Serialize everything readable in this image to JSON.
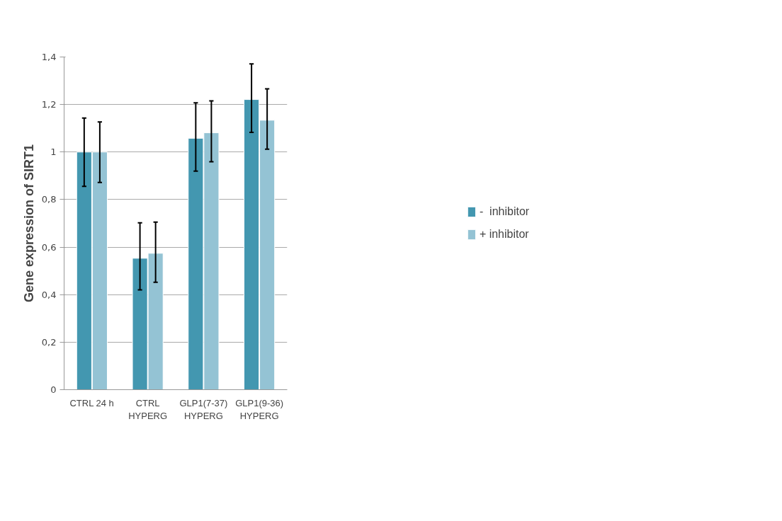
{
  "chart_data": {
    "type": "bar",
    "ylabel": "Gene expression of SIRT1",
    "categories": [
      "CTRL 24 h",
      "CTRL\nHYPERG",
      "GLP1(7-37)\nHYPERG",
      "GLP1(9-36)\nHYPERG"
    ],
    "series": [
      {
        "name": "-  inhibitor",
        "color": "#4397b0",
        "values": [
          1.0,
          0.553,
          1.058,
          1.221
        ],
        "errors": [
          [
            0.856,
            1.143
          ],
          [
            0.42,
            0.702
          ],
          [
            0.92,
            1.207
          ],
          [
            1.083,
            1.371
          ]
        ]
      },
      {
        "name": "+ inhibitor",
        "color": "#94c3d4",
        "values": [
          1.0,
          0.574,
          1.081,
          1.134
        ],
        "errors": [
          [
            0.872,
            1.127
          ],
          [
            0.452,
            0.705
          ],
          [
            0.959,
            1.215
          ],
          [
            1.012,
            1.266
          ]
        ]
      }
    ],
    "ylim": [
      0,
      1.4
    ],
    "yticks": [
      0,
      {
        "value": 0.2,
        "label": "0,2"
      },
      {
        "value": 0.4,
        "label": "0,4"
      },
      {
        "value": 0.6,
        "label": "0,6"
      },
      {
        "value": 0.8,
        "label": "0,8"
      },
      1,
      {
        "value": 1.2,
        "label": "1,2"
      },
      {
        "value": 1.4,
        "label": "1,4"
      }
    ],
    "grid": "y",
    "legend": "right"
  }
}
